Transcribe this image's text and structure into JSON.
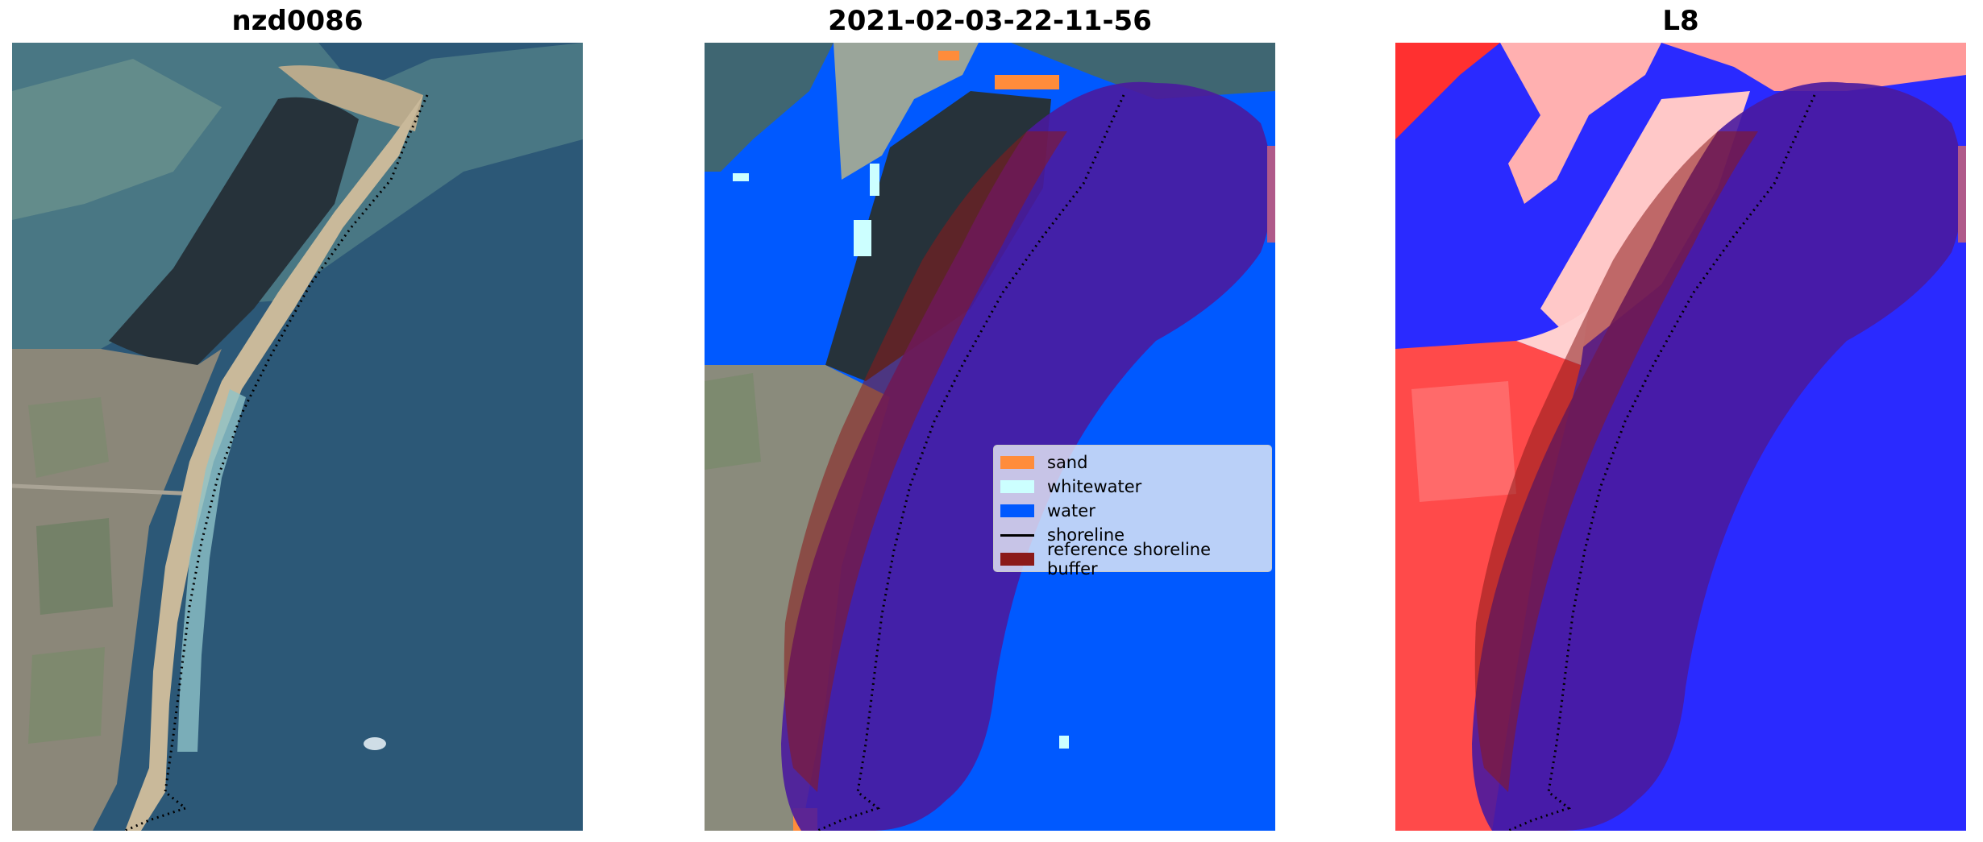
{
  "panels": [
    {
      "title": "nzd0086"
    },
    {
      "title": "2021-02-03-22-11-56"
    },
    {
      "title": "L8"
    }
  ],
  "legend": {
    "items": [
      {
        "label": "sand",
        "color": "#ff8c3b",
        "kind": "patch"
      },
      {
        "label": "whitewater",
        "color": "#ccffff",
        "kind": "patch"
      },
      {
        "label": "water",
        "color": "#0059ff",
        "kind": "patch"
      },
      {
        "label": "shoreline",
        "color": "#000000",
        "kind": "line"
      },
      {
        "label": "reference shoreline buffer",
        "color": "#8b1a1a",
        "kind": "patch"
      }
    ]
  },
  "colors": {
    "buffer_overlay": "#4a1a9e",
    "land_red": "#ff2020",
    "water_blue": "#2020ff"
  }
}
